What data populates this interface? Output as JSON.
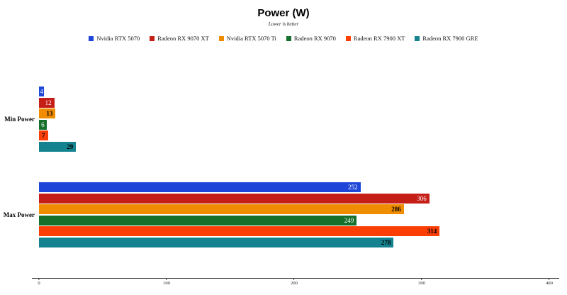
{
  "canvas": {
    "background": "#ffffff"
  },
  "chart_data": {
    "type": "bar",
    "orientation": "horizontal",
    "title": "Power (W)",
    "subtitle": "Lower is better",
    "categories": [
      "Min Power",
      "Max Power"
    ],
    "series": [
      {
        "name": "Nvidia RTX 5070",
        "color": "#1d46d8",
        "values": [
          4,
          252
        ],
        "value_label_color": "#ffffff",
        "value_label_bold": false
      },
      {
        "name": "Radeon RX 9070 XT",
        "color": "#c41e17",
        "values": [
          12,
          306
        ],
        "value_label_color": "#ffffff",
        "value_label_bold": false
      },
      {
        "name": "Nvidia RTX 5070 Ti",
        "color": "#f08c00",
        "values": [
          13,
          286
        ],
        "value_label_color": "#000000",
        "value_label_bold": true
      },
      {
        "name": "Radeon RX 9070",
        "color": "#15702b",
        "values": [
          6,
          249
        ],
        "value_label_color": "#ffffff",
        "value_label_bold": false
      },
      {
        "name": "Radeon RX 7900 XT",
        "color": "#fb3e06",
        "values": [
          7,
          314
        ],
        "value_label_color": "#000000",
        "value_label_bold": true
      },
      {
        "name": "Radeon RX 7900 GRE",
        "color": "#15838f",
        "values": [
          29,
          278
        ],
        "value_label_color": "#000000",
        "value_label_bold": true
      }
    ],
    "xlim": [
      0,
      400
    ],
    "x_ticks": [
      0,
      100,
      200,
      300,
      400
    ],
    "legend_position": "top",
    "grid": false
  }
}
